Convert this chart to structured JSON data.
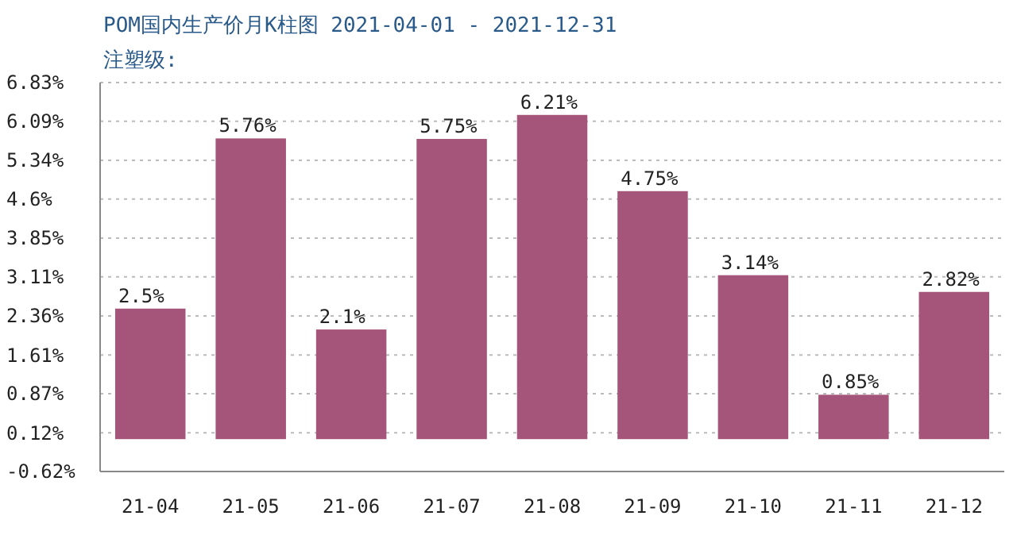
{
  "chart_data": {
    "type": "bar",
    "title": "POM国内生产价月K柱图  2021-04-01  -  2021-12-31",
    "subtitle": "注塑级:",
    "categories": [
      "21-04",
      "21-05",
      "21-06",
      "21-07",
      "21-08",
      "21-09",
      "21-10",
      "21-11",
      "21-12"
    ],
    "values": [
      2.5,
      5.76,
      2.1,
      5.75,
      6.21,
      4.75,
      3.14,
      0.85,
      2.82
    ],
    "value_labels": [
      "2.5%",
      "5.76%",
      "2.1%",
      "5.75%",
      "6.21%",
      "4.75%",
      "3.14%",
      "0.85%",
      "2.82%"
    ],
    "color": "#a5547a",
    "ylim": [
      -0.62,
      6.83
    ],
    "yticks": [
      {
        "value": -0.62,
        "label": "-0.62%"
      },
      {
        "value": 0.12,
        "label": "0.12%"
      },
      {
        "value": 0.87,
        "label": "0.87%"
      },
      {
        "value": 1.61,
        "label": "1.61%"
      },
      {
        "value": 2.36,
        "label": "2.36%"
      },
      {
        "value": 3.11,
        "label": "3.11%"
      },
      {
        "value": 3.85,
        "label": "3.85%"
      },
      {
        "value": 4.6,
        "label": "4.6%"
      },
      {
        "value": 5.34,
        "label": "5.34%"
      },
      {
        "value": 6.09,
        "label": "6.09%"
      },
      {
        "value": 6.83,
        "label": "6.83%"
      }
    ],
    "grid": "y"
  }
}
